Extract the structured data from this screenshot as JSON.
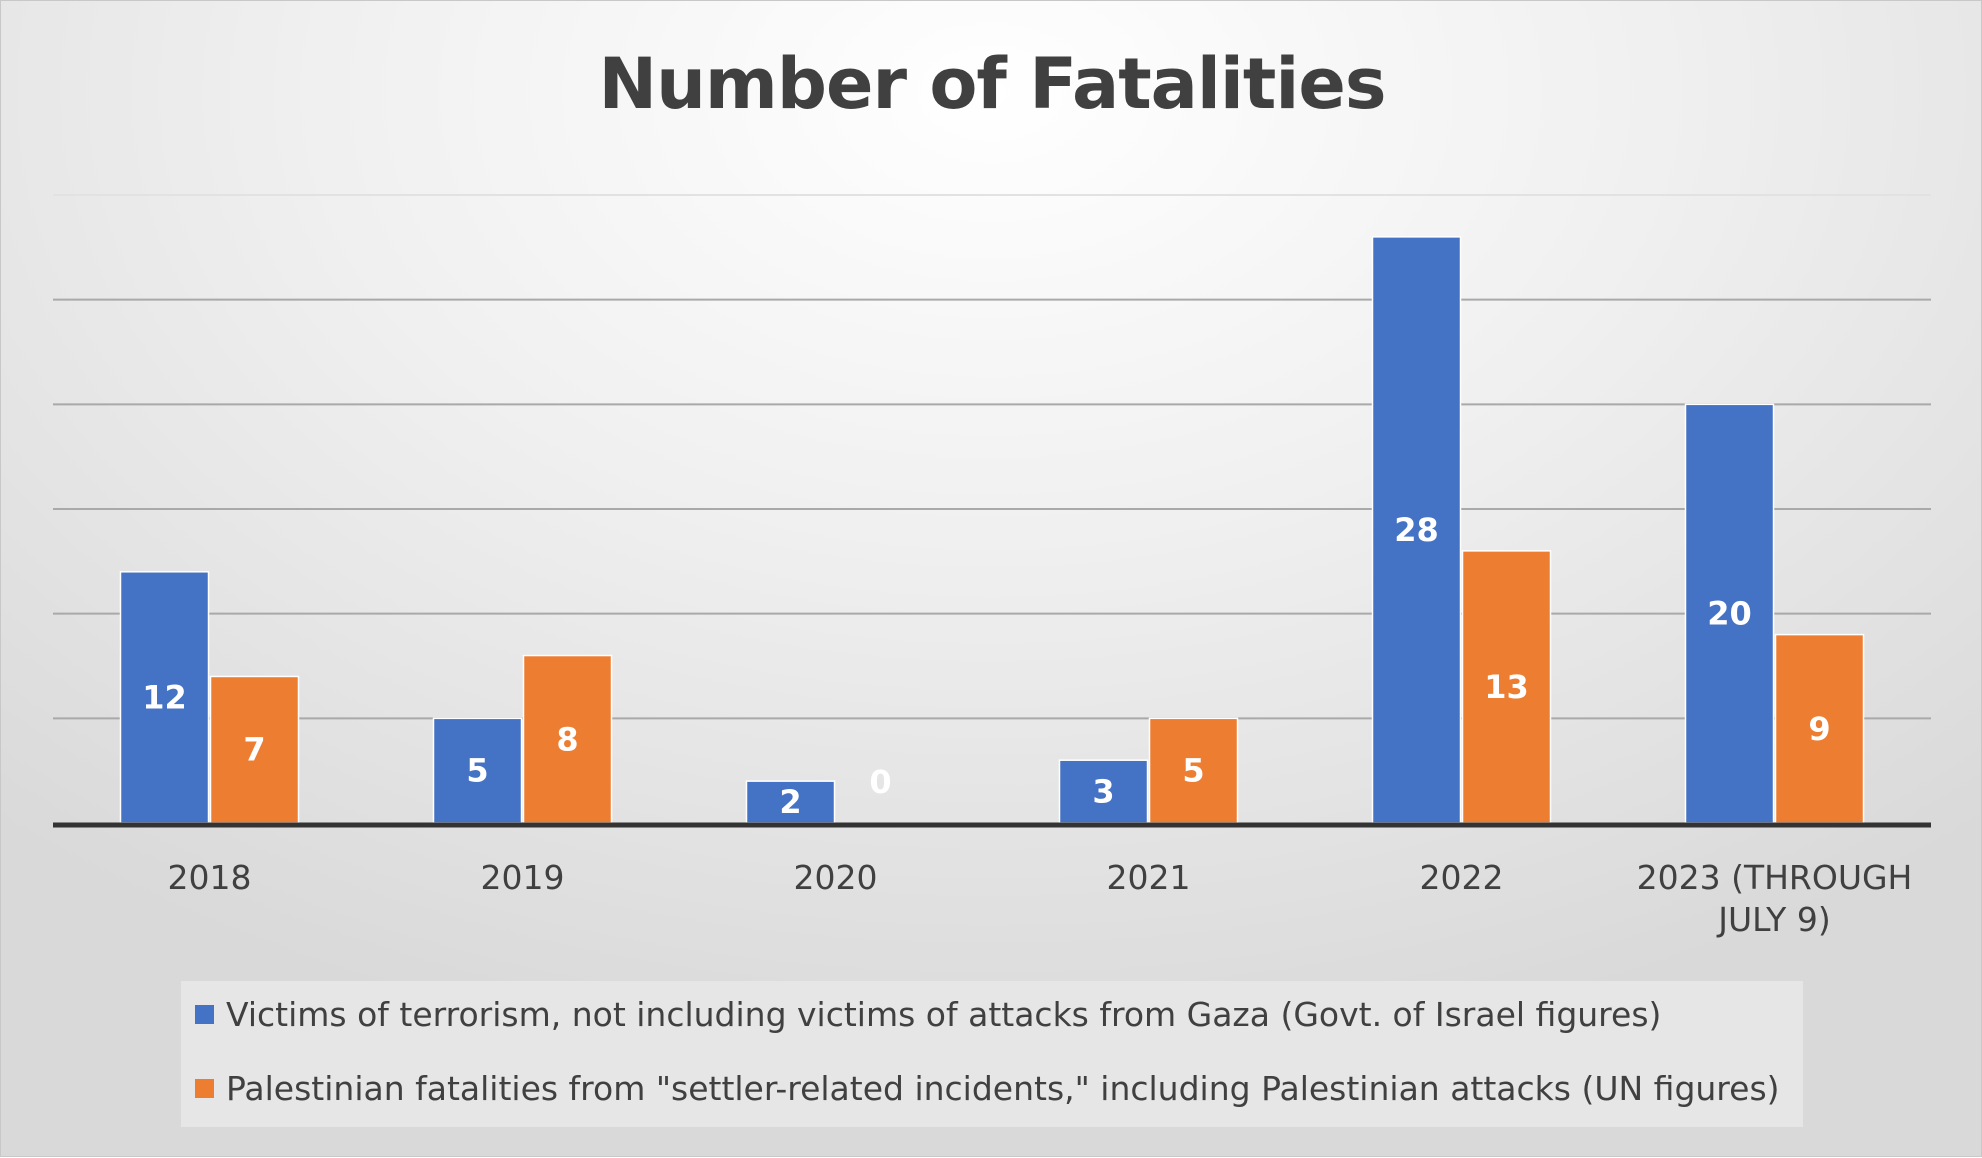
{
  "chart_data": {
    "type": "bar",
    "title": "Number of Fatalities",
    "xlabel": "",
    "ylabel": "",
    "categories": [
      "2018",
      "2019",
      "2020",
      "2021",
      "2022",
      "2023 (THROUGH JULY 9)"
    ],
    "series": [
      {
        "name": "Victims of terrorism, not including victims of attacks from Gaza (Govt. of Israel figures)",
        "values": [
          12,
          5,
          2,
          3,
          28,
          20
        ],
        "color": "#4472C4"
      },
      {
        "name": "Palestinian fatalities from \"settler-related incidents,\" including Palestinian attacks (UN figures)",
        "values": [
          7,
          8,
          0,
          5,
          13,
          9
        ],
        "color": "#ED7D31"
      }
    ],
    "ylim": [
      0,
      30
    ],
    "gridlines": true,
    "y_tick_labels_shown": false,
    "data_labels": true,
    "legend_position": "bottom"
  }
}
